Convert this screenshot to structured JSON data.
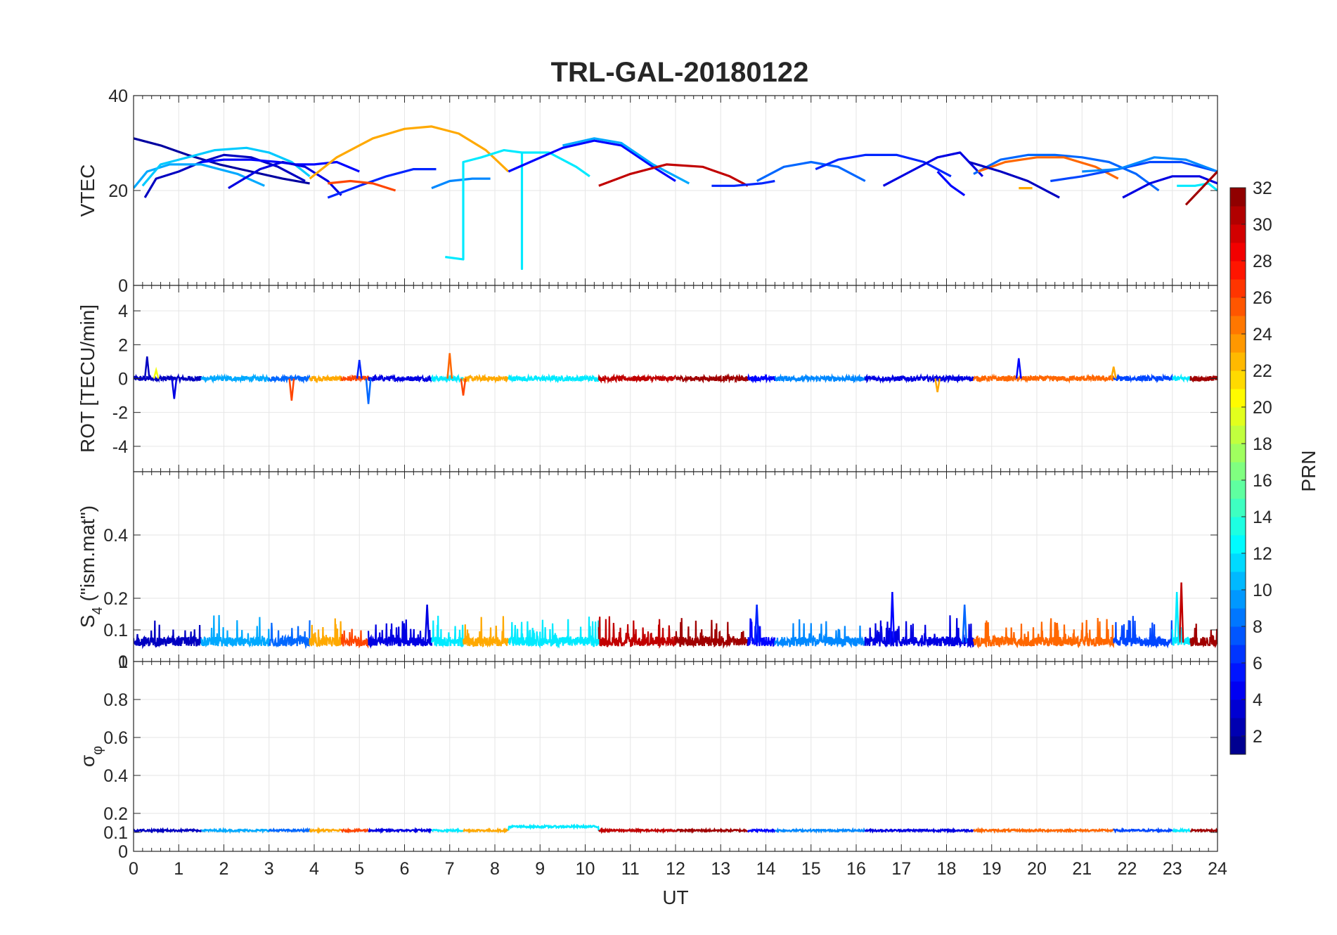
{
  "chart_data": {
    "type": "line",
    "title": "TRL-GAL-20180122",
    "xlabel": "UT",
    "xlim": [
      0,
      24
    ],
    "xticks": [
      "0",
      "1",
      "2",
      "3",
      "4",
      "5",
      "6",
      "7",
      "8",
      "9",
      "10",
      "11",
      "12",
      "13",
      "14",
      "15",
      "16",
      "17",
      "18",
      "19",
      "20",
      "21",
      "22",
      "23",
      "24"
    ],
    "grid": true,
    "colormap": "jet",
    "colorbar": {
      "label": "PRN",
      "range": [
        1,
        32
      ],
      "ticks": [
        "2",
        "4",
        "6",
        "8",
        "10",
        "12",
        "14",
        "16",
        "18",
        "20",
        "22",
        "24",
        "26",
        "28",
        "30",
        "32"
      ],
      "tick_values": [
        2,
        4,
        6,
        8,
        10,
        12,
        14,
        16,
        18,
        20,
        22,
        24,
        26,
        28,
        30,
        32
      ]
    },
    "panels": [
      {
        "id": "vtec",
        "ylabel": "VTEC",
        "ylim": [
          0,
          40
        ],
        "yticks": [
          "0",
          "20",
          "40"
        ],
        "ytick_values": [
          0,
          20,
          40
        ],
        "series": [
          {
            "prn": 2,
            "x": [
              0.0,
              0.6,
              1.2,
              1.9,
              2.6,
              3.3,
              3.9
            ],
            "y": [
              31,
              29.5,
              27.5,
              25.5,
              24,
              22.5,
              21.5
            ]
          },
          {
            "prn": 3,
            "x": [
              0.25,
              0.5,
              1.0,
              1.5,
              2.0,
              2.6,
              3.2,
              3.8
            ],
            "y": [
              18.5,
              22.5,
              24,
              26,
              27.5,
              27,
              25,
              22
            ]
          },
          {
            "prn": 10,
            "x": [
              0.0,
              0.3,
              0.8,
              1.5,
              2.3,
              2.9
            ],
            "y": [
              20.5,
              24,
              25.5,
              25.5,
              23.5,
              21
            ]
          },
          {
            "prn": 11,
            "x": [
              0.2,
              0.6,
              1.2,
              1.8,
              2.5,
              3.0,
              3.5,
              3.9
            ],
            "y": [
              21,
              25.5,
              27,
              28.5,
              29,
              28,
              26,
              23
            ]
          },
          {
            "prn": 5,
            "x": [
              1.5,
              2.0,
              2.6,
              3.2,
              3.6,
              4.0,
              4.5,
              5.0
            ],
            "y": [
              26,
              26.5,
              26.5,
              26,
              25.5,
              25.5,
              26,
              24
            ]
          },
          {
            "prn": 4,
            "x": [
              2.1,
              2.8,
              3.3,
              3.8,
              4.3,
              4.6
            ],
            "y": [
              20.5,
              24.5,
              26,
              25,
              22,
              19
            ]
          },
          {
            "prn": 23,
            "x": [
              3.9,
              4.5,
              5.3,
              6.0,
              6.6,
              7.2,
              7.8,
              8.3
            ],
            "y": [
              22.5,
              27,
              31,
              33,
              33.5,
              32,
              28.5,
              24
            ]
          },
          {
            "prn": 6,
            "x": [
              4.3,
              5.0,
              5.6,
              6.2,
              6.7
            ],
            "y": [
              18.5,
              21,
              23,
              24.5,
              24.5
            ]
          },
          {
            "prn": 26,
            "x": [
              4.3,
              4.8,
              5.3,
              5.8
            ],
            "y": [
              21.5,
              22,
              21.5,
              20
            ]
          },
          {
            "prn": 9,
            "x": [
              6.6,
              7.0,
              7.5,
              7.9
            ],
            "y": [
              20.5,
              22,
              22.5,
              22.5
            ]
          },
          {
            "prn": 12,
            "x": [
              6.9,
              7.3,
              7.3,
              7.3,
              7.7,
              8.2,
              8.6,
              8.6,
              8.6,
              9.2,
              9.8,
              10.1
            ],
            "y": [
              6,
              5.5,
              5.5,
              26,
              27,
              28.5,
              28,
              3.5,
              28,
              28,
              25,
              23
            ]
          },
          {
            "prn": 5,
            "x": [
              8.3,
              8.9,
              9.5,
              10.2,
              10.8,
              11.5,
              12.0
            ],
            "y": [
              24,
              26.5,
              29,
              30.5,
              29.5,
              25,
              22
            ]
          },
          {
            "prn": 10,
            "x": [
              9.5,
              10.2,
              10.8,
              11.5,
              12.3
            ],
            "y": [
              29.5,
              31,
              30,
              25.5,
              21.5
            ]
          },
          {
            "prn": 30,
            "x": [
              10.3,
              11.0,
              11.8,
              12.6,
              13.2,
              13.6
            ],
            "y": [
              21,
              23.5,
              25.5,
              25,
              23,
              21
            ]
          },
          {
            "prn": 6,
            "x": [
              12.8,
              13.3,
              13.9,
              14.2
            ],
            "y": [
              21,
              21,
              21.5,
              22
            ]
          },
          {
            "prn": 8,
            "x": [
              13.8,
              14.4,
              15.0,
              15.6,
              16.2
            ],
            "y": [
              22,
              25,
              26,
              25,
              22
            ]
          },
          {
            "prn": 6,
            "x": [
              15.1,
              15.6,
              16.2,
              16.9,
              17.5,
              18.1
            ],
            "y": [
              24.5,
              26.5,
              27.5,
              27.5,
              26,
              23
            ]
          },
          {
            "prn": 4,
            "x": [
              16.6,
              17.2,
              17.8,
              18.3,
              18.8
            ],
            "y": [
              21,
              24,
              27,
              28,
              23
            ]
          },
          {
            "prn": 5,
            "x": [
              17.8,
              18.1,
              18.4
            ],
            "y": [
              24,
              21,
              19
            ]
          },
          {
            "prn": 8,
            "x": [
              18.6,
              19.2,
              19.8,
              20.4,
              21.0,
              21.6,
              22.2,
              22.7
            ],
            "y": [
              23.5,
              26.5,
              27.5,
              27.5,
              27,
              26,
              23.5,
              20
            ]
          },
          {
            "prn": 25,
            "x": [
              18.7,
              19.3,
              20.0,
              20.6,
              21.3,
              21.8
            ],
            "y": [
              24,
              26,
              27,
              27,
              25,
              22.5
            ]
          },
          {
            "prn": 3,
            "x": [
              18.5,
              19.2,
              19.8,
              20.5
            ],
            "y": [
              26,
              24,
              22,
              18.5
            ]
          },
          {
            "prn": 23,
            "x": [
              19.6,
              19.9
            ],
            "y": [
              20.5,
              20.5
            ]
          },
          {
            "prn": 7,
            "x": [
              20.3,
              21.0,
              21.8,
              22.5,
              23.2,
              24.0
            ],
            "y": [
              22,
              23,
              24.5,
              26,
              26,
              24
            ]
          },
          {
            "prn": 9,
            "x": [
              21.0,
              21.8,
              22.6,
              23.3,
              24.0
            ],
            "y": [
              24,
              24.5,
              27,
              26.5,
              24
            ]
          },
          {
            "prn": 4,
            "x": [
              21.9,
              22.5,
              23.0,
              23.6,
              24.0
            ],
            "y": [
              18.5,
              21.5,
              23,
              23,
              21.5
            ]
          },
          {
            "prn": 12,
            "x": [
              23.1,
              23.5,
              23.8,
              24.0
            ],
            "y": [
              21,
              21,
              21.5,
              20
            ]
          },
          {
            "prn": 31,
            "x": [
              23.3,
              23.6,
              24.0
            ],
            "y": [
              17,
              20,
              24
            ]
          }
        ]
      },
      {
        "id": "rot",
        "ylabel": "ROT [TECU/min]",
        "ylim": [
          -5.5,
          5.5
        ],
        "yticks": [
          "-4",
          "-2",
          "0",
          "2",
          "4"
        ],
        "ytick_values": [
          -4,
          -2,
          0,
          2,
          4
        ],
        "noise_amplitude": 0.15,
        "spikes": [
          {
            "prn": 3,
            "x": 0.3,
            "y": 1.3
          },
          {
            "prn": 4,
            "x": 0.9,
            "y": -1.2
          },
          {
            "prn": 20,
            "x": 0.5,
            "y": 0.5
          },
          {
            "prn": 26,
            "x": 3.5,
            "y": -1.3
          },
          {
            "prn": 6,
            "x": 5.0,
            "y": 1.1
          },
          {
            "prn": 8,
            "x": 5.2,
            "y": -1.5
          },
          {
            "prn": 25,
            "x": 7.0,
            "y": 1.5
          },
          {
            "prn": 26,
            "x": 7.3,
            "y": -1.0
          },
          {
            "prn": 5,
            "x": 19.6,
            "y": 1.2
          },
          {
            "prn": 23,
            "x": 17.8,
            "y": -0.8
          },
          {
            "prn": 23,
            "x": 21.7,
            "y": 0.7
          }
        ]
      },
      {
        "id": "s4",
        "ylabel": "S4 (\"ism.mat\")",
        "ylabel_main": "S",
        "ylabel_sub": "4",
        "ylabel_rest": " (\"ism.mat\")",
        "ylim": [
          0,
          0.6
        ],
        "yticks": [
          "0",
          "0.1",
          "0.2",
          "0.4"
        ],
        "ytick_values": [
          0,
          0.1,
          0.2,
          0.4
        ],
        "baseline": 0.06,
        "spikes": [
          {
            "prn": 5,
            "x": 16.8,
            "y": 0.22
          },
          {
            "prn": 30,
            "x": 23.2,
            "y": 0.25
          },
          {
            "prn": 12,
            "x": 23.1,
            "y": 0.22
          },
          {
            "prn": 8,
            "x": 18.4,
            "y": 0.18
          },
          {
            "prn": 6,
            "x": 13.8,
            "y": 0.18
          },
          {
            "prn": 4,
            "x": 6.5,
            "y": 0.18
          }
        ]
      },
      {
        "id": "sigphi",
        "ylabel": "σφ",
        "ylabel_main": "σ",
        "ylabel_sub": "φ",
        "ylim": [
          0,
          1
        ],
        "yticks": [
          "0",
          "0.1",
          "0.2",
          "0.4",
          "0.6",
          "0.8",
          "1"
        ],
        "ytick_values": [
          0,
          0.1,
          0.2,
          0.4,
          0.6,
          0.8,
          1
        ],
        "baseline": 0.11
      }
    ],
    "segments": [
      {
        "prn": 3,
        "x": [
          0.0,
          1.5
        ]
      },
      {
        "prn": 10,
        "x": [
          1.5,
          3.0
        ]
      },
      {
        "prn": 8,
        "x": [
          3.0,
          3.9
        ]
      },
      {
        "prn": 23,
        "x": [
          3.9,
          4.6
        ]
      },
      {
        "prn": 26,
        "x": [
          4.6,
          5.2
        ]
      },
      {
        "prn": 4,
        "x": [
          5.2,
          6.6
        ]
      },
      {
        "prn": 12,
        "x": [
          6.6,
          7.3
        ]
      },
      {
        "prn": 23,
        "x": [
          7.3,
          8.3
        ]
      },
      {
        "prn": 12,
        "x": [
          8.3,
          10.3
        ]
      },
      {
        "prn": 30,
        "x": [
          10.3,
          12.0
        ]
      },
      {
        "prn": 31,
        "x": [
          12.0,
          13.6
        ]
      },
      {
        "prn": 5,
        "x": [
          13.6,
          14.2
        ]
      },
      {
        "prn": 9,
        "x": [
          14.2,
          16.2
        ]
      },
      {
        "prn": 4,
        "x": [
          16.2,
          18.6
        ]
      },
      {
        "prn": 25,
        "x": [
          18.6,
          21.7
        ]
      },
      {
        "prn": 7,
        "x": [
          21.7,
          23.0
        ]
      },
      {
        "prn": 12,
        "x": [
          23.0,
          23.4
        ]
      },
      {
        "prn": 31,
        "x": [
          23.4,
          24.0
        ]
      }
    ]
  }
}
